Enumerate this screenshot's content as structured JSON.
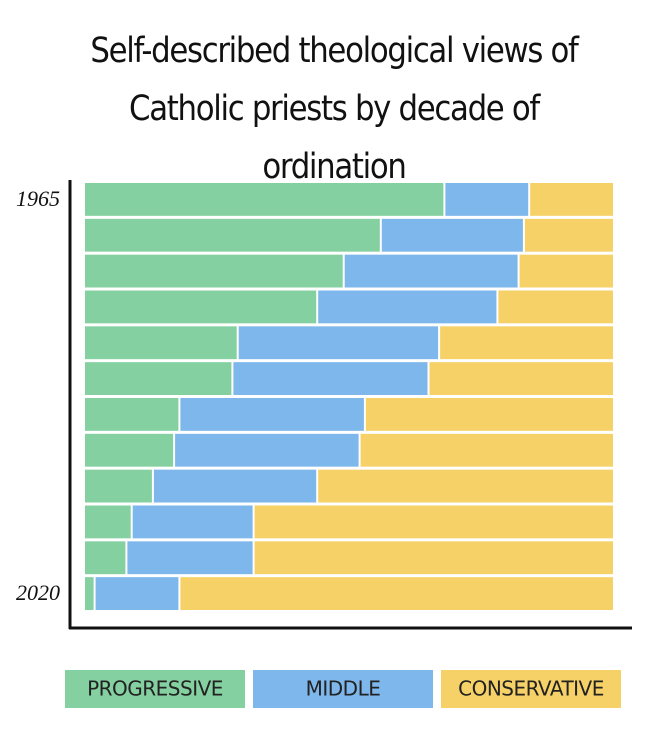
{
  "chart_data": {
    "type": "stacked_bar_horizontal",
    "title": "Self-described theological views of Catholic priests by decade of ordination",
    "categories": [
      "1965",
      null,
      null,
      null,
      null,
      null,
      null,
      null,
      null,
      null,
      null,
      "2020"
    ],
    "xlim": [
      0,
      100
    ],
    "series": [
      {
        "name": "PROGRESSIVE",
        "color": "#84d0a0",
        "values": [
          68,
          56,
          49,
          44,
          29,
          28,
          18,
          17,
          13,
          9,
          8,
          2
        ]
      },
      {
        "name": "MIDDLE",
        "color": "#7db7eb",
        "values": [
          16,
          27,
          33,
          34,
          38,
          37,
          35,
          35,
          31,
          23,
          24,
          16
        ]
      },
      {
        "name": "CONSERVATIVE",
        "color": "#f6d167",
        "values": [
          16,
          17,
          18,
          22,
          33,
          35,
          47,
          48,
          56,
          68,
          68,
          82
        ]
      }
    ]
  }
}
